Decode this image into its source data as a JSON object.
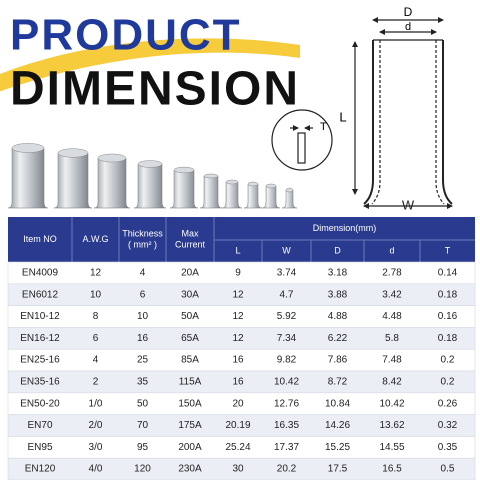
{
  "header": {
    "title1": "PRODUCT",
    "title2": "DIMENSION"
  },
  "diagram": {
    "outer_width": "D",
    "inner_width": "d",
    "length": "L",
    "flare_width": "W",
    "thickness": "T"
  },
  "table": {
    "columns": [
      [
        "Item NO"
      ],
      [
        "A.W.G"
      ],
      [
        "Thickness",
        "( mm² )"
      ],
      [
        "Max",
        "Current"
      ]
    ],
    "group_header": "Dimension(mm)",
    "sub_columns": [
      "L",
      "W",
      "D",
      "d",
      "T"
    ],
    "rows": [
      [
        "EN4009",
        "12",
        "4",
        "20A",
        "9",
        "3.74",
        "3.18",
        "2.78",
        "0.14"
      ],
      [
        "EN6012",
        "10",
        "6",
        "30A",
        "12",
        "4.7",
        "3.88",
        "3.42",
        "0.18"
      ],
      [
        "EN10-12",
        "8",
        "10",
        "50A",
        "12",
        "5.92",
        "4.88",
        "4.48",
        "0.16"
      ],
      [
        "EN16-12",
        "6",
        "16",
        "65A",
        "12",
        "7.34",
        "6.22",
        "5.8",
        "0.18"
      ],
      [
        "EN25-16",
        "4",
        "25",
        "85A",
        "16",
        "9.82",
        "7.86",
        "7.48",
        "0.2"
      ],
      [
        "EN35-16",
        "2",
        "35",
        "115A",
        "16",
        "10.42",
        "8.72",
        "8.42",
        "0.2"
      ],
      [
        "EN50-20",
        "1/0",
        "50",
        "150A",
        "20",
        "12.76",
        "10.84",
        "10.42",
        "0.26"
      ],
      [
        "EN70",
        "2/0",
        "70",
        "175A",
        "20.19",
        "16.35",
        "14.26",
        "13.62",
        "0.32"
      ],
      [
        "EN95",
        "3/0",
        "95",
        "200A",
        "25.24",
        "17.37",
        "15.25",
        "14.55",
        "0.35"
      ],
      [
        "EN120",
        "4/0",
        "120",
        "230A",
        "30",
        "20.2",
        "17.5",
        "16.5",
        "0.5"
      ]
    ]
  }
}
